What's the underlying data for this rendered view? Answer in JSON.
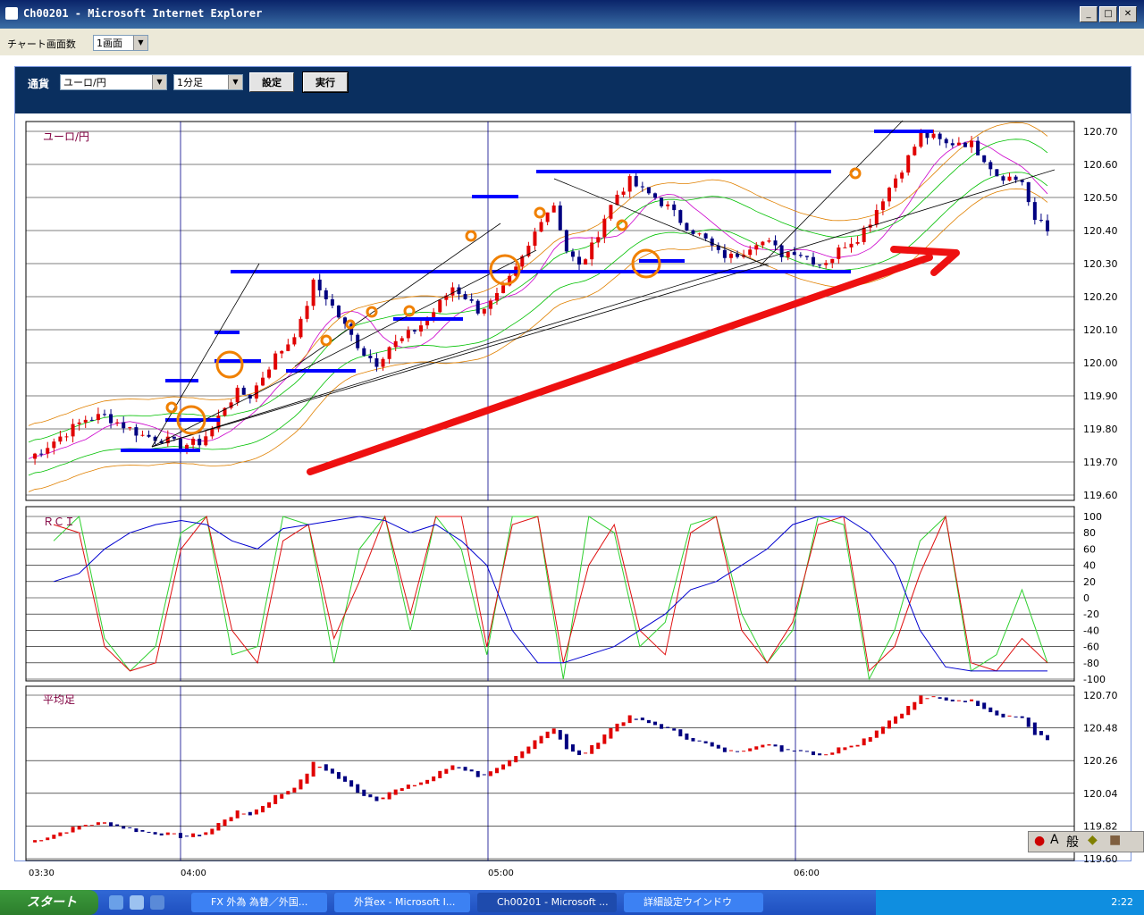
{
  "window": {
    "title": "Ch00201 - Microsoft Internet Explorer",
    "min": "_",
    "max": "□",
    "close": "✕"
  },
  "screens": {
    "label": "チャート画面数",
    "value": "1画面"
  },
  "controls": {
    "currency_label": "通貨",
    "currency_value": "ユーロ/円",
    "interval_value": "1分足",
    "settings_button": "設定",
    "run_button": "実行"
  },
  "main_chart": {
    "title": "ユーロ/円",
    "y_ticks": [
      "120.70",
      "120.60",
      "120.50",
      "120.40",
      "120.30",
      "120.20",
      "120.10",
      "120.00",
      "119.90",
      "119.80",
      "119.70",
      "119.60"
    ]
  },
  "rci_chart": {
    "title": "ＲＣＩ",
    "y_ticks": [
      "100",
      "80",
      "60",
      "40",
      "20",
      "0",
      "-20",
      "-40",
      "-60",
      "-80",
      "-100"
    ]
  },
  "heikin_chart": {
    "title": "平均足",
    "y_ticks": [
      "120.70",
      "120.48",
      "120.26",
      "120.04",
      "119.82",
      "119.60"
    ]
  },
  "x_labels": [
    "03:30",
    "04:00",
    "05:00",
    "06:00"
  ],
  "chart_data": {
    "type": "candlestick",
    "title": "ユーロ/円",
    "ylim": [
      119.6,
      120.7
    ],
    "x": [
      "03:30",
      "04:00",
      "05:00",
      "06:00"
    ],
    "close_path": [
      [
        0,
        119.71
      ],
      [
        3,
        119.75
      ],
      [
        6,
        119.79
      ],
      [
        9,
        119.83
      ],
      [
        12,
        119.84
      ],
      [
        15,
        119.81
      ],
      [
        18,
        119.78
      ],
      [
        21,
        119.77
      ],
      [
        24,
        119.75
      ],
      [
        27,
        119.76
      ],
      [
        29,
        119.8
      ],
      [
        31,
        119.87
      ],
      [
        33,
        119.91
      ],
      [
        35,
        119.9
      ],
      [
        37,
        119.96
      ],
      [
        39,
        120.02
      ],
      [
        41,
        120.06
      ],
      [
        43,
        120.12
      ],
      [
        45,
        120.24
      ],
      [
        47,
        120.2
      ],
      [
        49,
        120.14
      ],
      [
        51,
        120.08
      ],
      [
        53,
        120.03
      ],
      [
        55,
        120.0
      ],
      [
        57,
        120.05
      ],
      [
        59,
        120.07
      ],
      [
        61,
        120.1
      ],
      [
        63,
        120.13
      ],
      [
        65,
        120.18
      ],
      [
        67,
        120.23
      ],
      [
        69,
        120.2
      ],
      [
        71,
        120.16
      ],
      [
        73,
        120.18
      ],
      [
        75,
        120.22
      ],
      [
        77,
        120.28
      ],
      [
        79,
        120.35
      ],
      [
        81,
        120.44
      ],
      [
        83,
        120.48
      ],
      [
        85,
        120.34
      ],
      [
        87,
        120.29
      ],
      [
        89,
        120.35
      ],
      [
        91,
        120.44
      ],
      [
        93,
        120.51
      ],
      [
        95,
        120.55
      ],
      [
        97,
        120.52
      ],
      [
        99,
        120.5
      ],
      [
        101,
        120.47
      ],
      [
        103,
        120.43
      ],
      [
        105,
        120.4
      ],
      [
        107,
        120.37
      ],
      [
        109,
        120.33
      ],
      [
        111,
        120.32
      ],
      [
        113,
        120.34
      ],
      [
        115,
        120.37
      ],
      [
        117,
        120.36
      ],
      [
        119,
        120.33
      ],
      [
        121,
        120.34
      ],
      [
        123,
        120.32
      ],
      [
        125,
        120.3
      ],
      [
        127,
        120.32
      ],
      [
        129,
        120.36
      ],
      [
        131,
        120.38
      ],
      [
        133,
        120.43
      ],
      [
        135,
        120.5
      ],
      [
        137,
        120.56
      ],
      [
        139,
        120.62
      ],
      [
        141,
        120.69
      ],
      [
        143,
        120.68
      ],
      [
        145,
        120.66
      ],
      [
        147,
        120.67
      ],
      [
        149,
        120.66
      ],
      [
        151,
        120.62
      ],
      [
        153,
        120.57
      ],
      [
        155,
        120.56
      ],
      [
        157,
        120.55
      ],
      [
        159,
        120.42
      ],
      [
        160,
        120.43
      ],
      [
        161,
        120.4
      ]
    ],
    "rci_series": [
      {
        "values": [
          70,
          100,
          -50,
          -90,
          -60,
          80,
          100,
          -70,
          -60,
          100,
          90,
          -80,
          60,
          100,
          -40,
          100,
          60,
          -70,
          100,
          100,
          -100,
          100,
          80,
          -60,
          -30,
          90,
          100,
          -20,
          -80,
          -40,
          100,
          90,
          -100,
          -40,
          70,
          100,
          -90,
          -70,
          10,
          -80
        ]
      },
      {
        "values": [
          90,
          80,
          -60,
          -90,
          -80,
          60,
          100,
          -40,
          -80,
          70,
          90,
          -50,
          20,
          100,
          -20,
          100,
          100,
          -60,
          90,
          100,
          -80,
          40,
          90,
          -40,
          -70,
          80,
          100,
          -40,
          -80,
          -30,
          90,
          100,
          -90,
          -60,
          30,
          100,
          -80,
          -90,
          -50,
          -80
        ]
      },
      {
        "values": [
          20,
          30,
          60,
          80,
          90,
          95,
          90,
          70,
          60,
          85,
          90,
          95,
          100,
          95,
          80,
          90,
          70,
          40,
          -40,
          -80,
          -80,
          -70,
          -60,
          -40,
          -20,
          10,
          20,
          40,
          60,
          90,
          100,
          100,
          80,
          40,
          -40,
          -85,
          -90,
          -90,
          -90,
          -90
        ]
      }
    ]
  }
}
